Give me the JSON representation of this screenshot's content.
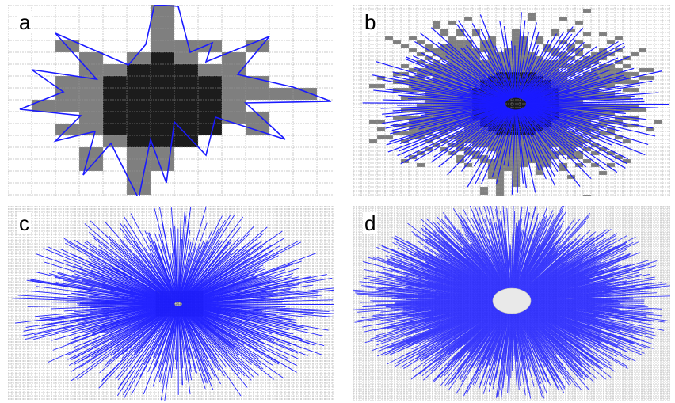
{
  "panels": [
    {
      "id": "a",
      "label": "a"
    },
    {
      "id": "b",
      "label": "b"
    },
    {
      "id": "c",
      "label": "c"
    },
    {
      "id": "d",
      "label": "d"
    }
  ],
  "colors": {
    "background": "#ffffff",
    "grid_line": "#9a9a9a",
    "boundary_cell": "#7f7f7f",
    "interior_cell": "#1c1c1c",
    "ray": "#1a1aff",
    "label": "#000000"
  }
}
